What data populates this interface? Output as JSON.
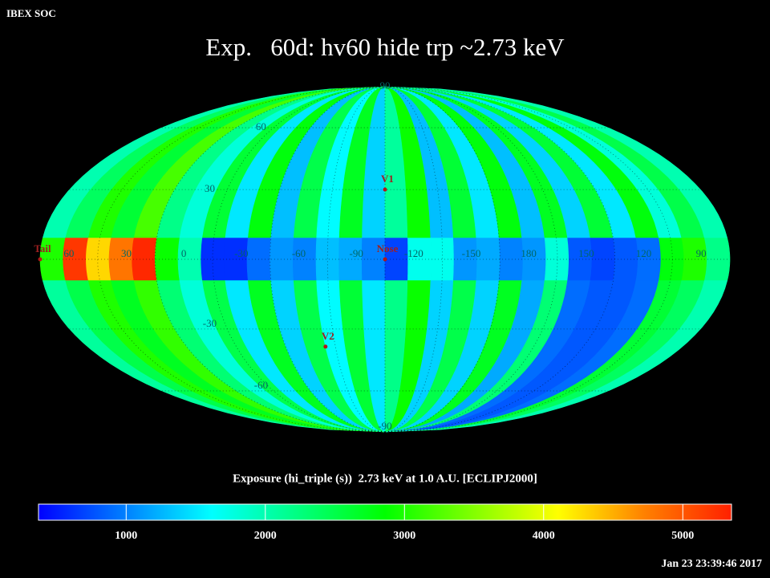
{
  "header": "IBEX SOC",
  "title": "Exp.   60d: hv60 hide trp ~2.73 keV",
  "timestamp": "Jan 23 23:39:46 2017",
  "chart_data": {
    "type": "mollweide-heatmap",
    "center_lon": -105,
    "lon_bins": [
      75,
      63,
      51,
      39,
      27,
      15,
      3,
      -9,
      -21,
      -33,
      -45,
      -57,
      -69,
      -81,
      -93,
      -105,
      -117,
      -129,
      -141,
      -153,
      -165,
      -177,
      -189,
      -201,
      -213,
      -225,
      -237,
      -249,
      -261,
      -273,
      -285
    ],
    "lat_bins": [
      90,
      9,
      -9,
      -90
    ],
    "values": [
      [
        2000,
        2400,
        3000,
        2600,
        3200,
        2200,
        1800,
        2600,
        1500,
        2800,
        1300,
        2500,
        1600,
        2700,
        1400,
        2100,
        2900,
        1300,
        2600,
        1500,
        2800,
        1300,
        2700,
        1400,
        2600,
        1500,
        2800,
        1800,
        2500,
        2000
      ],
      [
        3000,
        5200,
        4300,
        4800,
        5300,
        2900,
        2000,
        600,
        600,
        900,
        1100,
        1000,
        1300,
        1200,
        1000,
        700,
        1700,
        1700,
        1100,
        1200,
        1000,
        1100,
        1800,
        800,
        700,
        800,
        900,
        2800,
        3000,
        2200
      ],
      [
        2100,
        2500,
        3000,
        2700,
        3100,
        2300,
        1800,
        2500,
        1500,
        2700,
        1400,
        2500,
        1600,
        2600,
        1500,
        2200,
        2900,
        1400,
        2500,
        1400,
        2700,
        1200,
        2300,
        900,
        800,
        800,
        900,
        2600,
        2400,
        2000
      ]
    ],
    "clim": [
      370,
      5350
    ],
    "colormap": [
      "#0000ff",
      "#0080ff",
      "#00ffff",
      "#00ff80",
      "#00ff00",
      "#80ff00",
      "#ffff00",
      "#ff8000",
      "#ff2000"
    ],
    "colorbar_label": "Exposure (hi_triple (s))  2.73 keV at 1.0 A.U. [ECLIPJ2000]",
    "colorbar_ticks": [
      1000,
      2000,
      3000,
      4000,
      5000
    ],
    "lon_labels": [
      60,
      30,
      0,
      -30,
      -60,
      -90,
      -120,
      -150,
      180,
      150,
      120,
      90
    ],
    "lat_labels": [
      90,
      60,
      30,
      -30,
      -60,
      -90
    ],
    "grid": true,
    "markers": [
      {
        "label": "V1",
        "lon": -105,
        "lat": 30
      },
      {
        "label": "Nose",
        "lon": -105,
        "lat": 0
      },
      {
        "label": "V2",
        "lon": -69,
        "lat": -38
      },
      {
        "label": "Tail",
        "lon": 75,
        "lat": 0
      }
    ]
  }
}
